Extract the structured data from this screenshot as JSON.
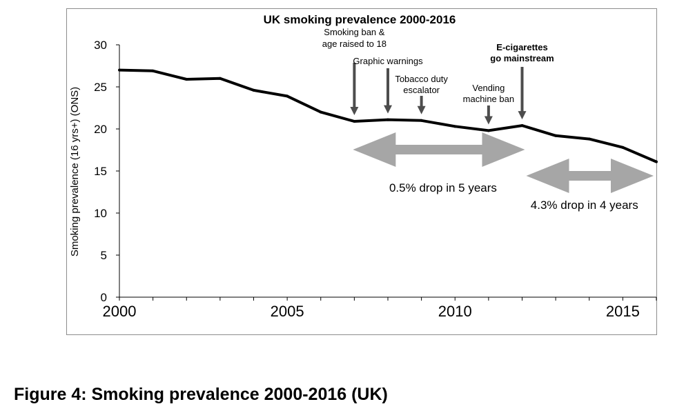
{
  "chart_data": {
    "type": "line",
    "title": "UK smoking prevalence 2000-2016",
    "xlabel": "",
    "ylabel": "Smoking prevalence (16 yrs+) (ONS)",
    "xlim": [
      2000,
      2016
    ],
    "ylim": [
      0,
      30
    ],
    "x_ticks": [
      2000,
      2005,
      2010,
      2015
    ],
    "y_ticks": [
      0,
      5,
      10,
      15,
      20,
      25,
      30
    ],
    "grid": false,
    "legend": "none",
    "line_color": "#000000",
    "arrow_color": "#a6a6a6",
    "marker_color": "#4d4d4d",
    "series": [
      {
        "x": [
          2000,
          2001,
          2002,
          2003,
          2004,
          2005,
          2006,
          2007,
          2008,
          2009,
          2010,
          2011,
          2012,
          2013,
          2014,
          2015,
          2016
        ],
        "values": [
          27.0,
          26.9,
          25.9,
          26.0,
          24.6,
          23.9,
          22.0,
          20.9,
          21.1,
          21.0,
          20.3,
          19.8,
          20.4,
          19.2,
          18.8,
          17.8,
          16.1
        ]
      }
    ],
    "events": [
      {
        "year": 2007,
        "lines": [
          "Smoking ban &",
          "age raised to 18"
        ],
        "bold": false,
        "label_y": 20.9
      },
      {
        "year": 2008,
        "lines": [
          "Graphic warnings"
        ],
        "bold": false,
        "label_y": 21.1
      },
      {
        "year": 2009,
        "lines": [
          "Tobacco duty",
          "escalator"
        ],
        "bold": false,
        "label_y": 21.0
      },
      {
        "year": 2011,
        "lines": [
          "Vending",
          "machine ban"
        ],
        "bold": false,
        "label_y": 19.8
      },
      {
        "year": 2012,
        "lines": [
          "E-cigarettes",
          "go mainstream"
        ],
        "bold": true,
        "label_y": 20.4
      }
    ],
    "ranges": [
      {
        "from": 2007,
        "to": 2012,
        "label": "0.5% drop in 5 years"
      },
      {
        "from": 2012,
        "to": 2016,
        "label": "4.3% drop in 4 years"
      }
    ]
  },
  "caption": "Figure 4: Smoking prevalence 2000-2016 (UK)"
}
